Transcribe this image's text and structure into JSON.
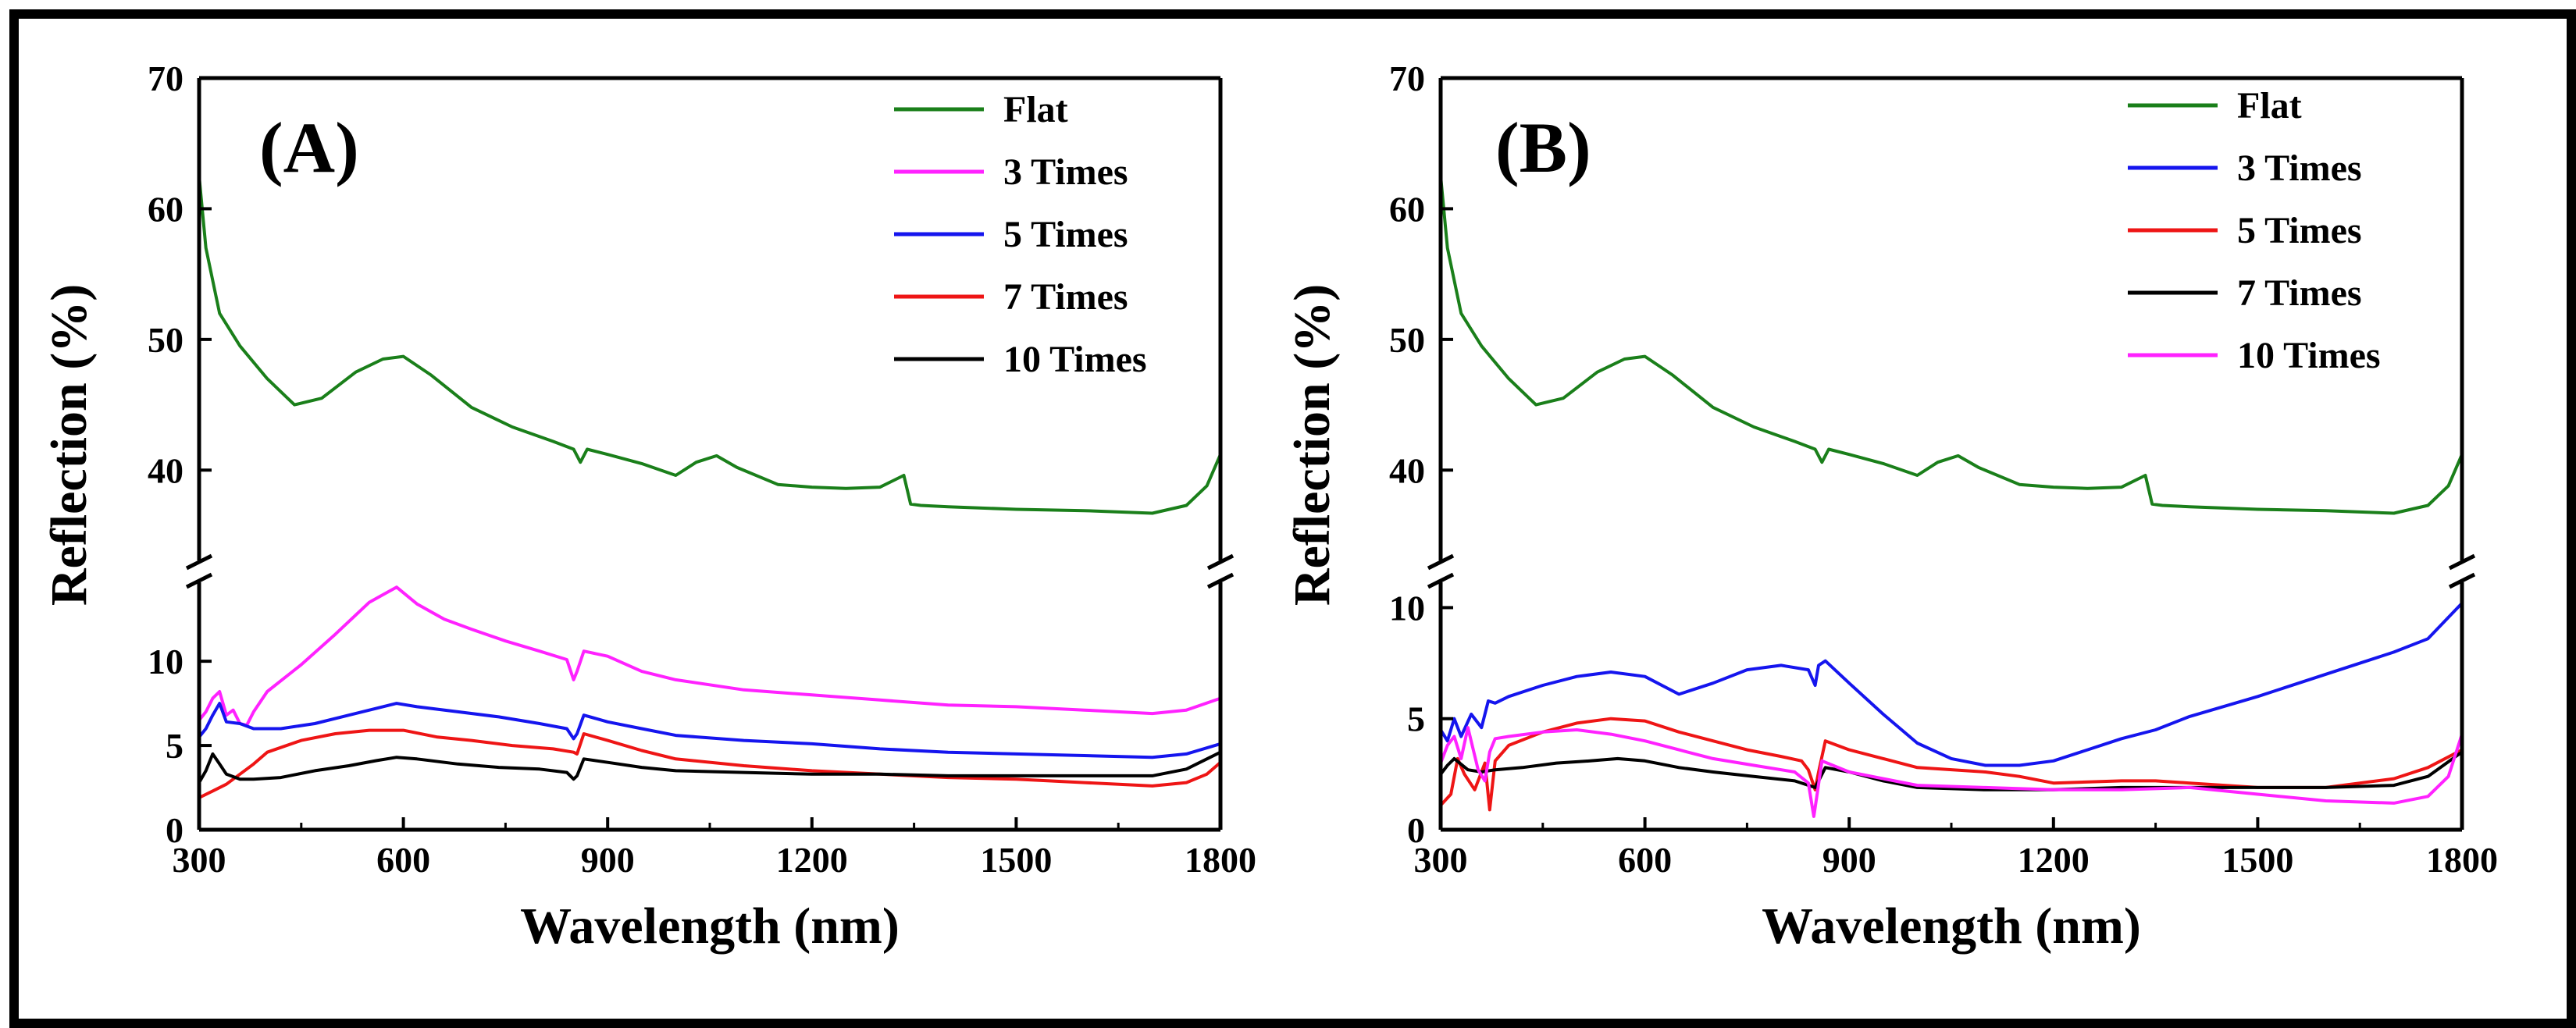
{
  "chart_data": [
    {
      "type": "line",
      "panel_label": "(A)",
      "xlabel": "Wavelength (nm)",
      "ylabel": "Reflection (%)",
      "xlim": [
        300,
        1800
      ],
      "xticks": [
        300,
        600,
        900,
        1200,
        1500,
        1800
      ],
      "broken_y_axis": true,
      "ylim_upper": [
        35,
        70
      ],
      "yticks_upper": [
        40,
        50,
        60,
        70
      ],
      "ylim_lower": [
        0,
        14.5
      ],
      "yticks_lower": [
        0,
        5,
        10
      ],
      "legend_position": "top-right",
      "series": [
        {
          "name": "Flat",
          "color": "#1a7f1a",
          "x": [
            300,
            310,
            330,
            360,
            400,
            440,
            480,
            530,
            570,
            600,
            640,
            700,
            760,
            820,
            850,
            860,
            870,
            900,
            950,
            1000,
            1030,
            1060,
            1090,
            1150,
            1200,
            1250,
            1300,
            1335,
            1345,
            1360,
            1400,
            1500,
            1600,
            1700,
            1750,
            1780,
            1800
          ],
          "y": [
            62.5,
            57,
            52,
            49.5,
            47,
            45,
            45.5,
            47.5,
            48.5,
            48.7,
            47.3,
            44.8,
            43.3,
            42.2,
            41.6,
            40.6,
            41.6,
            41.2,
            40.5,
            39.6,
            40.6,
            41.1,
            40.2,
            38.9,
            38.7,
            38.6,
            38.7,
            39.6,
            37.4,
            37.3,
            37.2,
            37,
            36.9,
            36.7,
            37.3,
            38.8,
            41.2
          ]
        },
        {
          "name": "3 Times",
          "color": "#ff22ff",
          "x": [
            300,
            310,
            320,
            330,
            340,
            350,
            360,
            370,
            380,
            400,
            450,
            500,
            550,
            590,
            620,
            660,
            700,
            750,
            800,
            840,
            850,
            855,
            865,
            900,
            950,
            1000,
            1100,
            1200,
            1300,
            1400,
            1500,
            1600,
            1700,
            1750,
            1800
          ],
          "y": [
            6.5,
            7,
            7.8,
            8.2,
            6.8,
            7.1,
            6.3,
            6.2,
            7,
            8.2,
            9.8,
            11.6,
            13.5,
            14.4,
            13.4,
            12.5,
            11.9,
            11.2,
            10.6,
            10.1,
            8.9,
            9.4,
            10.6,
            10.3,
            9.4,
            8.9,
            8.3,
            8,
            7.7,
            7.4,
            7.3,
            7.1,
            6.9,
            7.1,
            7.8
          ]
        },
        {
          "name": "5 Times",
          "color": "#1515ee",
          "x": [
            300,
            310,
            320,
            330,
            340,
            360,
            380,
            420,
            470,
            520,
            560,
            590,
            620,
            680,
            740,
            800,
            840,
            850,
            855,
            865,
            900,
            950,
            1000,
            1100,
            1200,
            1300,
            1400,
            1500,
            1600,
            1700,
            1750,
            1800
          ],
          "y": [
            5.5,
            6,
            6.8,
            7.5,
            6.4,
            6.3,
            6,
            6,
            6.3,
            6.8,
            7.2,
            7.5,
            7.3,
            7,
            6.7,
            6.3,
            6,
            5.4,
            5.7,
            6.8,
            6.4,
            6,
            5.6,
            5.3,
            5.1,
            4.8,
            4.6,
            4.5,
            4.4,
            4.3,
            4.5,
            5.1
          ]
        },
        {
          "name": "7 Times",
          "color": "#ee1515",
          "x": [
            300,
            320,
            340,
            360,
            380,
            400,
            450,
            500,
            550,
            600,
            650,
            700,
            760,
            820,
            850,
            855,
            865,
            900,
            950,
            1000,
            1100,
            1200,
            1300,
            1400,
            1500,
            1600,
            1700,
            1750,
            1780,
            1800
          ],
          "y": [
            1.9,
            2.3,
            2.7,
            3.3,
            3.9,
            4.6,
            5.3,
            5.7,
            5.9,
            5.9,
            5.5,
            5.3,
            5,
            4.8,
            4.6,
            4.5,
            5.7,
            5.3,
            4.7,
            4.2,
            3.8,
            3.5,
            3.3,
            3.1,
            3,
            2.8,
            2.6,
            2.8,
            3.3,
            4
          ]
        },
        {
          "name": "10 Times",
          "color": "#000000",
          "x": [
            300,
            310,
            320,
            330,
            340,
            360,
            380,
            420,
            470,
            520,
            560,
            590,
            620,
            680,
            740,
            800,
            840,
            850,
            855,
            865,
            900,
            950,
            1000,
            1100,
            1200,
            1300,
            1400,
            1500,
            1600,
            1700,
            1750,
            1800
          ],
          "y": [
            2.8,
            3.5,
            4.5,
            3.9,
            3.3,
            3,
            3,
            3.1,
            3.5,
            3.8,
            4.1,
            4.3,
            4.2,
            3.9,
            3.7,
            3.6,
            3.4,
            3,
            3.2,
            4.2,
            4,
            3.7,
            3.5,
            3.4,
            3.3,
            3.3,
            3.2,
            3.2,
            3.2,
            3.2,
            3.6,
            4.6
          ]
        }
      ]
    },
    {
      "type": "line",
      "panel_label": "(B)",
      "xlabel": "Wavelength (nm)",
      "ylabel": "Reflection (%)",
      "xlim": [
        300,
        1800
      ],
      "xticks": [
        300,
        600,
        900,
        1200,
        1500,
        1800
      ],
      "broken_y_axis": true,
      "ylim_upper": [
        35,
        70
      ],
      "yticks_upper": [
        40,
        50,
        60,
        70
      ],
      "ylim_lower": [
        0,
        11
      ],
      "yticks_lower": [
        0,
        5,
        10
      ],
      "legend_position": "top-right",
      "series": [
        {
          "name": "Flat",
          "color": "#1a7f1a",
          "x": [
            300,
            310,
            330,
            360,
            400,
            440,
            480,
            530,
            570,
            600,
            640,
            700,
            760,
            820,
            850,
            860,
            870,
            900,
            950,
            1000,
            1030,
            1060,
            1090,
            1150,
            1200,
            1250,
            1300,
            1335,
            1345,
            1360,
            1400,
            1500,
            1600,
            1700,
            1750,
            1780,
            1800
          ],
          "y": [
            62.5,
            57,
            52,
            49.5,
            47,
            45,
            45.5,
            47.5,
            48.5,
            48.7,
            47.3,
            44.8,
            43.3,
            42.2,
            41.6,
            40.6,
            41.6,
            41.2,
            40.5,
            39.6,
            40.6,
            41.1,
            40.2,
            38.9,
            38.7,
            38.6,
            38.7,
            39.6,
            37.4,
            37.3,
            37.2,
            37,
            36.9,
            36.7,
            37.3,
            38.8,
            41.2
          ]
        },
        {
          "name": "3 Times",
          "color": "#1515ee",
          "x": [
            300,
            310,
            320,
            330,
            345,
            360,
            370,
            380,
            400,
            450,
            500,
            550,
            600,
            650,
            700,
            750,
            800,
            840,
            850,
            855,
            865,
            900,
            950,
            1000,
            1050,
            1100,
            1150,
            1200,
            1250,
            1300,
            1350,
            1400,
            1500,
            1600,
            1700,
            1750,
            1800
          ],
          "y": [
            4.5,
            4,
            5,
            4.2,
            5.2,
            4.6,
            5.8,
            5.7,
            6,
            6.5,
            6.9,
            7.1,
            6.9,
            6.1,
            6.6,
            7.2,
            7.4,
            7.2,
            6.5,
            7.4,
            7.6,
            6.6,
            5.2,
            3.9,
            3.2,
            2.9,
            2.9,
            3.1,
            3.6,
            4.1,
            4.5,
            5.1,
            6,
            7,
            8,
            8.6,
            10.2
          ]
        },
        {
          "name": "5 Times",
          "color": "#ee1515",
          "x": [
            300,
            315,
            325,
            335,
            350,
            365,
            372,
            380,
            400,
            450,
            500,
            550,
            600,
            650,
            700,
            750,
            800,
            830,
            840,
            850,
            855,
            865,
            900,
            950,
            1000,
            1100,
            1150,
            1200,
            1300,
            1350,
            1400,
            1500,
            1600,
            1700,
            1750,
            1800
          ],
          "y": [
            1.1,
            1.6,
            3.2,
            2.5,
            1.8,
            3,
            0.9,
            3.1,
            3.8,
            4.4,
            4.8,
            5,
            4.9,
            4.4,
            4,
            3.6,
            3.3,
            3.1,
            2.7,
            1.8,
            2.6,
            4,
            3.6,
            3.2,
            2.8,
            2.6,
            2.4,
            2.1,
            2.2,
            2.2,
            2.1,
            1.9,
            1.9,
            2.3,
            2.8,
            3.6
          ]
        },
        {
          "name": "7 Times",
          "color": "#000000",
          "x": [
            300,
            310,
            320,
            340,
            360,
            380,
            420,
            470,
            520,
            560,
            600,
            650,
            700,
            760,
            820,
            850,
            855,
            865,
            900,
            950,
            1000,
            1100,
            1200,
            1300,
            1400,
            1500,
            1600,
            1700,
            1750,
            1800
          ],
          "y": [
            2.5,
            2.9,
            3.2,
            2.7,
            2.6,
            2.7,
            2.8,
            3.0,
            3.1,
            3.2,
            3.1,
            2.8,
            2.6,
            2.4,
            2.2,
            1.9,
            2.2,
            2.8,
            2.6,
            2.2,
            1.9,
            1.8,
            1.8,
            1.9,
            1.9,
            1.9,
            1.9,
            2,
            2.4,
            3.5
          ]
        },
        {
          "name": "10 Times",
          "color": "#ff22ff",
          "x": [
            300,
            310,
            320,
            330,
            340,
            355,
            365,
            372,
            380,
            400,
            450,
            500,
            550,
            600,
            650,
            700,
            760,
            820,
            840,
            848,
            852,
            860,
            900,
            950,
            1000,
            1100,
            1200,
            1300,
            1400,
            1500,
            1600,
            1700,
            1750,
            1780,
            1800
          ],
          "y": [
            3,
            3.8,
            4.2,
            3.2,
            4.6,
            2.7,
            2.2,
            3.5,
            4.1,
            4.2,
            4.4,
            4.5,
            4.3,
            4,
            3.6,
            3.2,
            2.9,
            2.6,
            2.1,
            0.6,
            1.4,
            3.1,
            2.6,
            2.3,
            2,
            1.9,
            1.8,
            1.8,
            1.9,
            1.6,
            1.3,
            1.2,
            1.5,
            2.4,
            4.3
          ]
        }
      ]
    }
  ]
}
